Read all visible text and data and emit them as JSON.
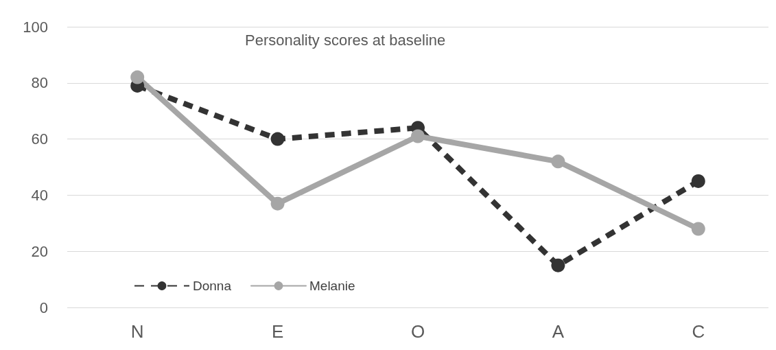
{
  "chart_data": {
    "type": "line",
    "title": "Personality scores at baseline",
    "categories": [
      "N",
      "E",
      "O",
      "A",
      "C"
    ],
    "series": [
      {
        "name": "Donna",
        "color": "#333333",
        "line_style": "dashed",
        "values": [
          79,
          60,
          64,
          15,
          45
        ]
      },
      {
        "name": "Melanie",
        "color": "#a6a6a6",
        "line_style": "solid",
        "values": [
          82,
          37,
          61,
          52,
          28
        ]
      }
    ],
    "ylim": [
      0,
      100
    ],
    "yticks": [
      0,
      20,
      40,
      60,
      80,
      100
    ],
    "grid": "y",
    "legend": "bottom left",
    "marker": "circle"
  }
}
